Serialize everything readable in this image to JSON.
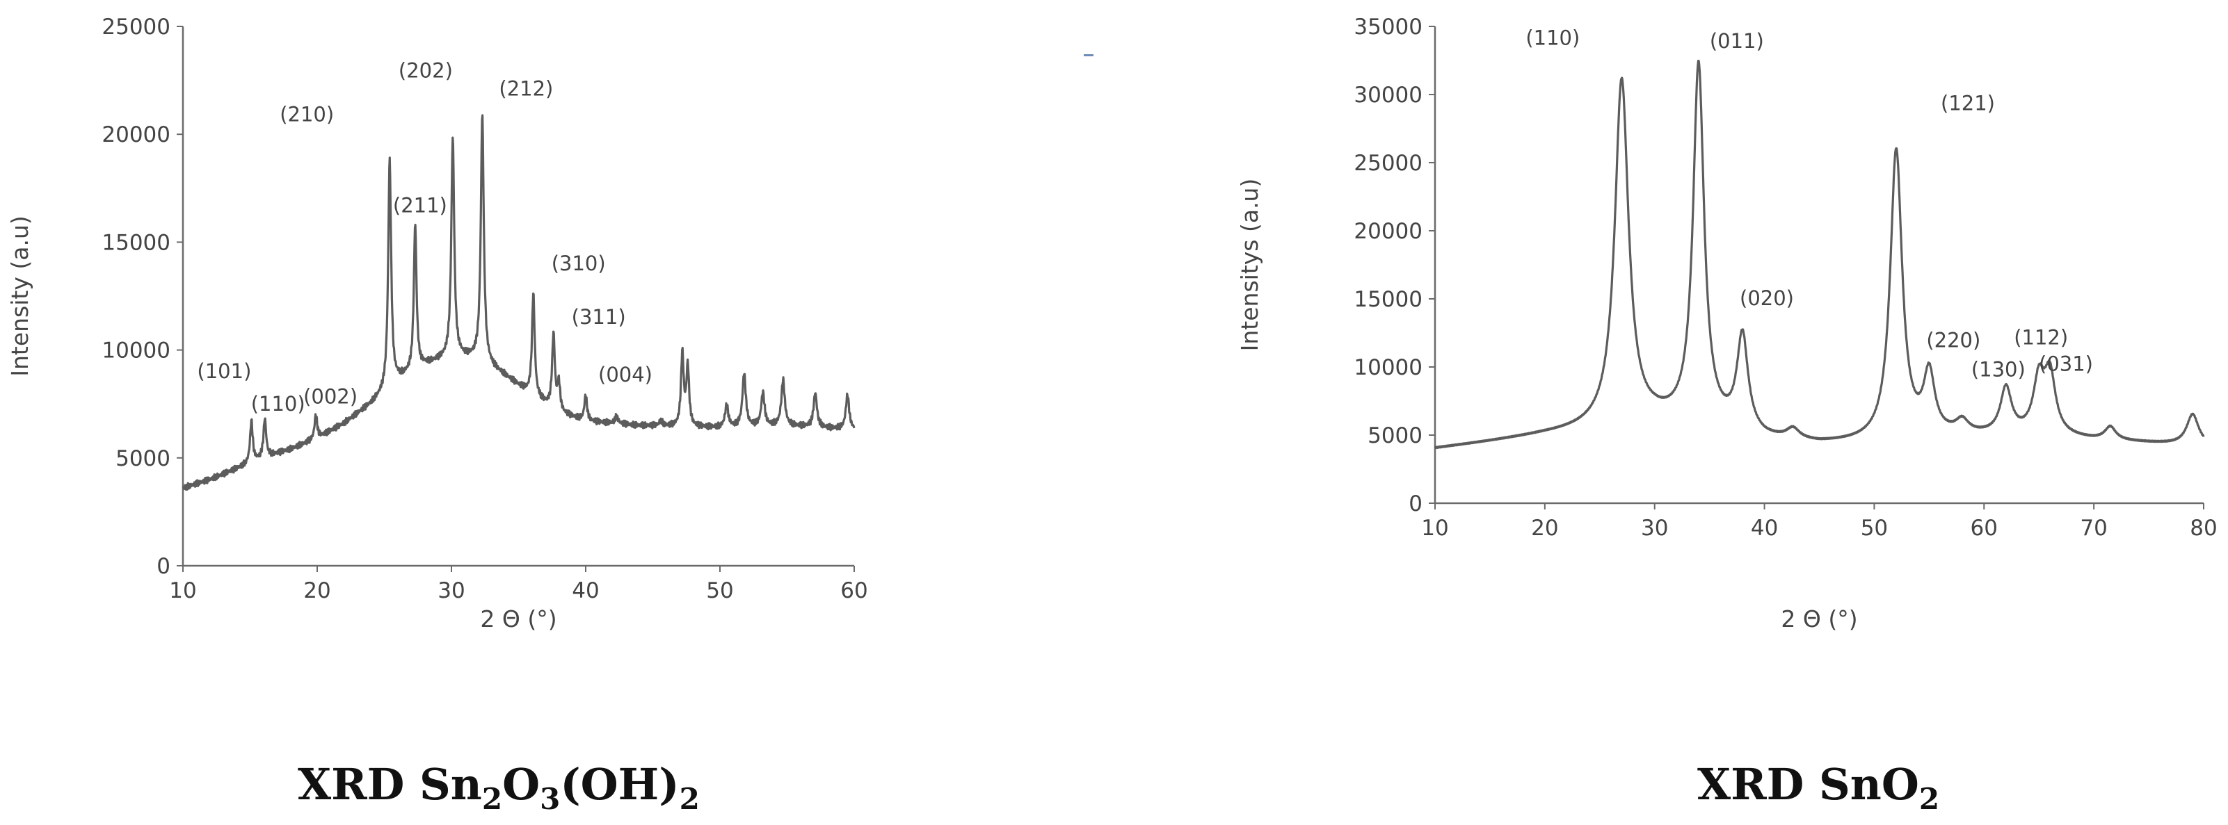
{
  "chart_data": [
    {
      "type": "line",
      "xlabel": "2 Θ (°)",
      "ylabel": "Intensity (a.u)",
      "xlim": [
        10,
        60
      ],
      "ylim": [
        0,
        25000
      ],
      "xticks": [
        "10",
        "20",
        "30",
        "40",
        "50",
        "60"
      ],
      "yticks": [
        "0",
        "5000",
        "10000",
        "15000",
        "20000",
        "25000"
      ],
      "grid": false,
      "caption": {
        "prefix": "XRD Sn",
        "s1": "2",
        "mid": "O",
        "s2": "3",
        "mid2": "(OH)",
        "s3": "2"
      },
      "peaks": [
        {
          "label": "(101)",
          "x": 15.1,
          "y": 6700
        },
        {
          "label": "(110)",
          "x": 16.1,
          "y": 6800
        },
        {
          "label": "(002)",
          "x": 19.9,
          "y": 7000
        },
        {
          "label": "(210)",
          "x": 25.4,
          "y": 18800
        },
        {
          "label": "(211)",
          "x": 27.3,
          "y": 15800
        },
        {
          "label": "(202)",
          "x": 30.1,
          "y": 19800
        },
        {
          "label": "(212)",
          "x": 32.3,
          "y": 20900
        },
        {
          "label": "(310)",
          "x": 36.1,
          "y": 12600
        },
        {
          "label": "(311)",
          "x": 37.6,
          "y": 10700
        },
        {
          "label": "(004)",
          "x": 40.0,
          "y": 7900
        }
      ],
      "baseline": [
        [
          10,
          3600
        ],
        [
          12,
          4000
        ],
        [
          14,
          4500
        ],
        [
          16,
          5000
        ],
        [
          18,
          5400
        ],
        [
          20,
          5900
        ],
        [
          22,
          6600
        ],
        [
          24,
          7500
        ],
        [
          26,
          8600
        ],
        [
          28,
          9300
        ],
        [
          30,
          9700
        ],
        [
          32,
          9600
        ],
        [
          34,
          8800
        ],
        [
          36,
          7900
        ],
        [
          38,
          7100
        ],
        [
          40,
          6700
        ],
        [
          44,
          6500
        ],
        [
          50,
          6400
        ],
        [
          55,
          6500
        ],
        [
          60,
          6300
        ]
      ],
      "series": [
        {
          "x": [
            15.1,
            16.1,
            19.9,
            25.4,
            27.3,
            30.1,
            32.3,
            36.1,
            37.6,
            38.0,
            40.0,
            42.3,
            45.6,
            47.2,
            47.6,
            50.5,
            51.8,
            53.2,
            54.7,
            57.1,
            59.5
          ],
          "y": [
            6700,
            6800,
            7000,
            18800,
            15800,
            19800,
            20900,
            12600,
            10700,
            8400,
            7900,
            6900,
            6700,
            9800,
            9200,
            7400,
            8900,
            8000,
            8600,
            8000,
            7900
          ],
          "width": [
            0.12,
            0.12,
            0.12,
            0.13,
            0.12,
            0.13,
            0.13,
            0.12,
            0.12,
            0.12,
            0.12,
            0.15,
            0.15,
            0.12,
            0.12,
            0.15,
            0.15,
            0.15,
            0.15,
            0.15,
            0.15
          ]
        }
      ]
    },
    {
      "type": "line",
      "xlabel": "2 Θ (°)",
      "ylabel": "Intensitys (a.u)",
      "xlim": [
        10,
        80
      ],
      "ylim": [
        0,
        35000
      ],
      "xticks": [
        "10",
        "20",
        "30",
        "40",
        "50",
        "60",
        "70",
        "80"
      ],
      "yticks": [
        "0",
        "5000",
        "10000",
        "15000",
        "20000",
        "25000",
        "30000",
        "35000"
      ],
      "grid": false,
      "caption": {
        "prefix": "XRD  SnO",
        "s1": "2"
      },
      "peaks": [
        {
          "label": "(110)",
          "x": 27.0,
          "y": 31000
        },
        {
          "label": "(011)",
          "x": 34.0,
          "y": 32000
        },
        {
          "label": "(020)",
          "x": 38.0,
          "y": 12000
        },
        {
          "label": "(121)",
          "x": 52.0,
          "y": 25800
        },
        {
          "label": "(220)",
          "x": 55.0,
          "y": 9200
        },
        {
          "label": "(130)",
          "x": 62.0,
          "y": 8300
        },
        {
          "label": "(112)",
          "x": 65.0,
          "y": 8800
        },
        {
          "label": "(031)",
          "x": 66.0,
          "y": 9200
        }
      ],
      "baseline": [
        [
          10,
          4000
        ],
        [
          15,
          4500
        ],
        [
          20,
          5000
        ],
        [
          25,
          5400
        ],
        [
          30,
          5900
        ],
        [
          35,
          5600
        ],
        [
          40,
          4600
        ],
        [
          45,
          4300
        ],
        [
          50,
          4400
        ],
        [
          55,
          4800
        ],
        [
          60,
          4900
        ],
        [
          65,
          5000
        ],
        [
          70,
          4600
        ],
        [
          75,
          4400
        ],
        [
          80,
          4200
        ]
      ],
      "series": [
        {
          "x": [
            27.0,
            34.0,
            38.0,
            42.6,
            52.0,
            55.0,
            58.0,
            62.0,
            65.0,
            66.0,
            71.5,
            79.0
          ],
          "y": [
            31000,
            32000,
            12000,
            5200,
            25800,
            9200,
            5800,
            8300,
            8800,
            9200,
            5500,
            6500
          ],
          "width": [
            0.75,
            0.6,
            0.6,
            0.7,
            0.65,
            0.6,
            0.7,
            0.6,
            0.6,
            0.6,
            0.6,
            0.65
          ]
        }
      ]
    }
  ]
}
